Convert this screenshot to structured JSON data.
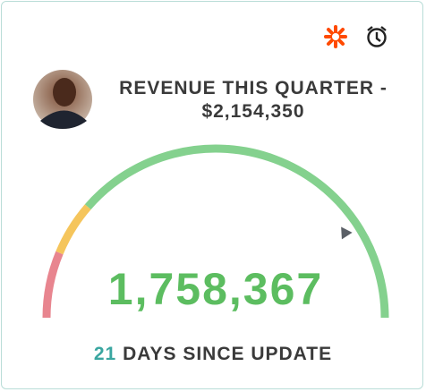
{
  "chart_data": {
    "type": "gauge",
    "title": "REVENUE THIS QUARTER - $2,154,350",
    "values": [
      1758367
    ],
    "value_labels": [
      "1,758,367"
    ],
    "value_color": "#5cbd60",
    "marker_color": "#5a5f66",
    "range": [
      0,
      2154350
    ],
    "bands": [
      {
        "color": "#e8858f",
        "to": 270000
      },
      {
        "color": "#f5c55c",
        "to": 490000
      },
      {
        "color": "#84d18e",
        "to": 2154350
      }
    ],
    "footer": {
      "days": 21,
      "text": "DAYS SINCE UPDATE"
    }
  }
}
